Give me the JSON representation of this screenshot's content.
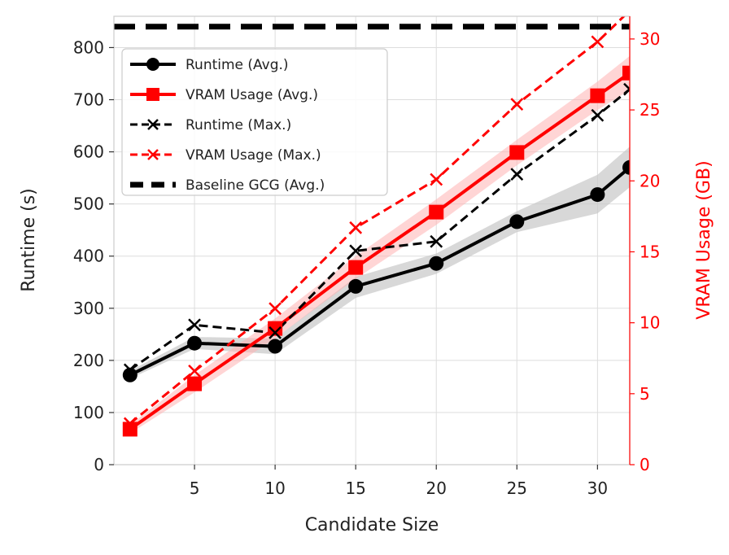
{
  "chart_data": {
    "type": "line",
    "xlabel": "Candidate Size",
    "ylabel": "Runtime (s)",
    "y2label": "VRAM Usage (GB)",
    "xlim": [
      0,
      32
    ],
    "ylim": [
      0,
      860
    ],
    "y2lim": [
      0,
      31.6
    ],
    "xticks": [
      5,
      10,
      15,
      20,
      25,
      30
    ],
    "yticks": [
      0,
      100,
      200,
      300,
      400,
      500,
      600,
      700,
      800
    ],
    "y2ticks": [
      0,
      5,
      10,
      15,
      20,
      25,
      30
    ],
    "grid": true,
    "legend_position": "top-left",
    "colors": {
      "runtime": "#000000",
      "vram": "#ff0000",
      "runtime_band": "#c8c8c8",
      "vram_band": "#ffb3b3"
    },
    "series": [
      {
        "name": "Runtime (Avg.)",
        "axis": "left",
        "style": "solid-circle",
        "x": [
          1,
          5,
          10,
          15,
          20,
          25,
          30,
          32
        ],
        "values": [
          172,
          233,
          227,
          342,
          386,
          466,
          518,
          570
        ],
        "band_lower": [
          165,
          222,
          212,
          320,
          366,
          446,
          482,
          532
        ],
        "band_upper": [
          180,
          245,
          242,
          360,
          405,
          486,
          556,
          610
        ]
      },
      {
        "name": "VRAM Usage (Avg.)",
        "axis": "right",
        "style": "solid-square",
        "x": [
          1,
          5,
          10,
          15,
          20,
          25,
          30,
          32
        ],
        "values": [
          2.5,
          5.7,
          9.6,
          13.9,
          17.8,
          22.0,
          26.0,
          27.6
        ],
        "band_lower": [
          2.2,
          5.1,
          8.9,
          13.1,
          16.9,
          21.1,
          25.0,
          26.4
        ],
        "band_upper": [
          2.8,
          6.3,
          10.3,
          14.7,
          18.7,
          22.9,
          27.0,
          28.8
        ]
      },
      {
        "name": "Runtime (Max.)",
        "axis": "left",
        "style": "dashed-x",
        "x": [
          1,
          5,
          10,
          15,
          20,
          25,
          30,
          32
        ],
        "values": [
          182,
          268,
          253,
          410,
          428,
          557,
          670,
          720
        ]
      },
      {
        "name": "VRAM Usage (Max.)",
        "axis": "right",
        "style": "dashed-x",
        "x": [
          1,
          5,
          10,
          15,
          20,
          25,
          30,
          32
        ],
        "values": [
          2.9,
          6.6,
          11.0,
          16.7,
          20.1,
          25.4,
          29.8,
          32.0
        ]
      },
      {
        "name": "Baseline GCG (Avg.)",
        "axis": "left",
        "style": "thick-dashed-hline",
        "x": [
          0,
          32
        ],
        "values": [
          840,
          840
        ]
      }
    ]
  }
}
